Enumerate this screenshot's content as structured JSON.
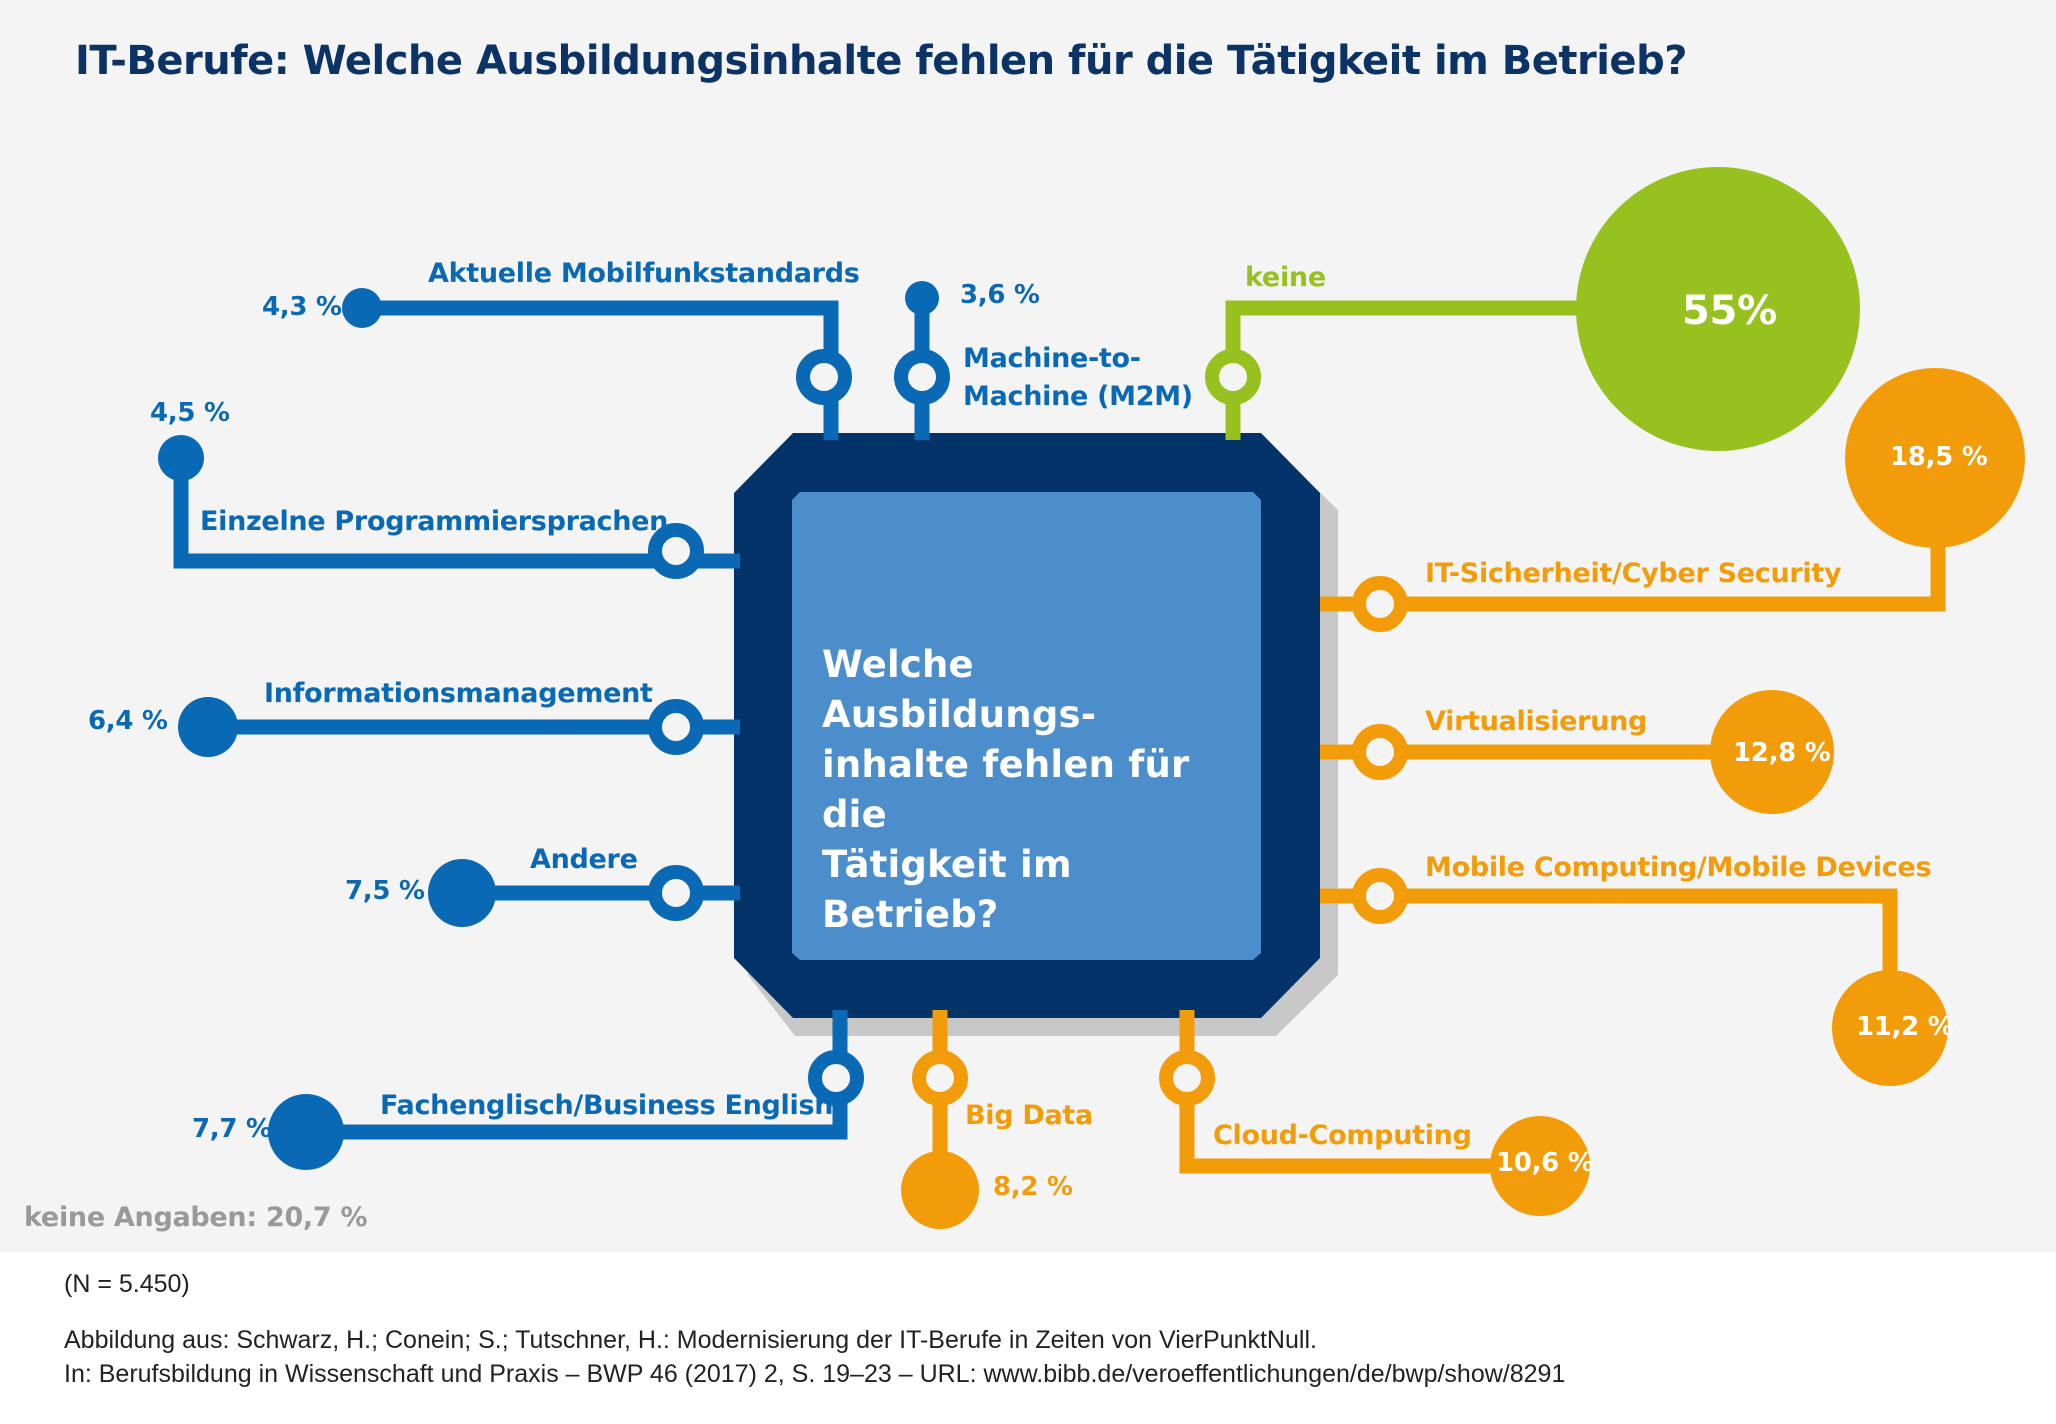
{
  "title": "IT-Berufe: Welche Ausbildungsinhalte fehlen für die Tätigkeit im Betrieb?",
  "chip_text": [
    "Welche Ausbildungs-",
    "inhalte fehlen für die",
    "Tätigkeit im Betrieb?"
  ],
  "colors": {
    "blue": "#0a69b4",
    "dark_navy": "#04336a",
    "chip_inner": "#4b8ecb",
    "orange": "#f39c0a",
    "green": "#97c11f",
    "gray_text": "#999999",
    "background": "#f4f4f4"
  },
  "items": {
    "mobilfunk": {
      "label": "Aktuelle  Mobilfunkstandards",
      "value": "4,3 %"
    },
    "m2m": {
      "label_line1": "Machine-to-",
      "label_line2": "Machine (M2M)",
      "value": "3,6 %"
    },
    "keine": {
      "label": "keine",
      "value": "55%"
    },
    "programmier": {
      "label": "Einzelne Programmiersprachen",
      "value": "4,5 %"
    },
    "info": {
      "label": "Informationsmanagement",
      "value": "6,4 %"
    },
    "andere": {
      "label": "Andere",
      "value": "7,5 %"
    },
    "englisch": {
      "label": "Fachenglisch/Business English",
      "value": "7,7 %"
    },
    "bigdata": {
      "label": "Big Data",
      "value": "8,2 %"
    },
    "cloud": {
      "label": "Cloud-Computing",
      "value": "10,6 %"
    },
    "security": {
      "label": "IT-Sicherheit/Cyber Security",
      "value": "18,5 %"
    },
    "virtual": {
      "label": "Virtualisierung",
      "value": "12,8 %"
    },
    "mobile": {
      "label": "Mobile Computing/Mobile Devices",
      "value": "11,2 %"
    }
  },
  "no_answer": "keine Angaben: 20,7 %",
  "footer": {
    "n": "(N = 5.450)",
    "source_line1": "Abbildung aus: Schwarz, H.; Conein; S.; Tutschner, H.: Modernisierung der IT-Berufe in Zeiten von VierPunktNull.",
    "source_line2": "In: Berufsbildung in Wissenschaft und Praxis – BWP 46 (2017) 2, S. 19–23 – URL: www.bibb.de/veroeffentlichungen/de/bwp/show/8291"
  },
  "chart_data": {
    "type": "bubble-diagram",
    "title": "IT-Berufe: Welche Ausbildungsinhalte fehlen für die Tätigkeit im Betrieb?",
    "unit": "%",
    "categories": [
      "Aktuelle Mobilfunkstandards",
      "Machine-to-Machine (M2M)",
      "keine",
      "Einzelne Programmiersprachen",
      "Informationsmanagement",
      "Andere",
      "Fachenglisch/Business English",
      "Big Data",
      "Cloud-Computing",
      "IT-Sicherheit/Cyber Security",
      "Virtualisierung",
      "Mobile Computing/Mobile Devices"
    ],
    "values": [
      4.3,
      3.6,
      55,
      4.5,
      6.4,
      7.5,
      7.7,
      8.2,
      10.6,
      18.5,
      12.8,
      11.2
    ],
    "series_colors": [
      "blue",
      "blue",
      "green",
      "blue",
      "blue",
      "blue",
      "blue",
      "orange",
      "orange",
      "orange",
      "orange",
      "orange"
    ],
    "no_answer_pct": 20.7,
    "n": 5450
  }
}
